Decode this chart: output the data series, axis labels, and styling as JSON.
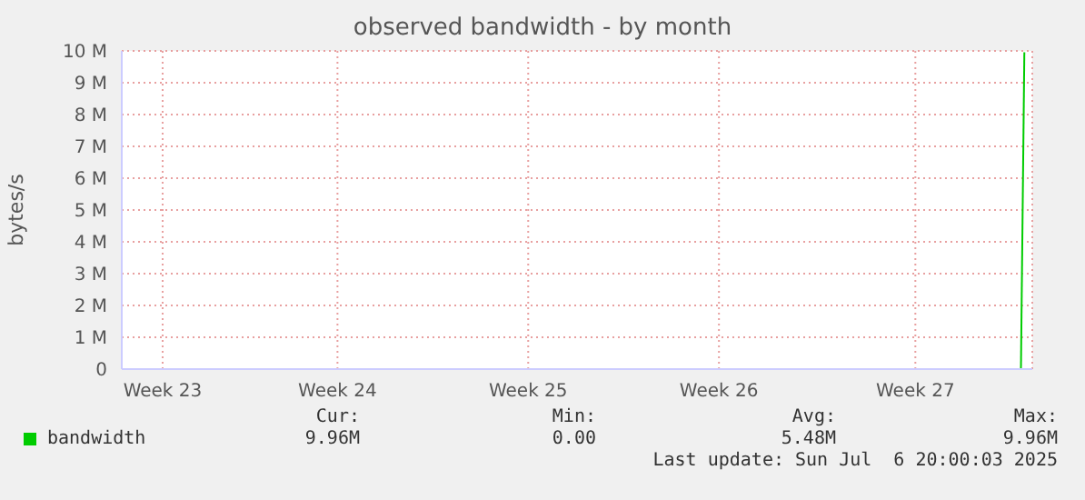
{
  "chart_data": {
    "type": "line",
    "title": "observed bandwidth - by month",
    "ylabel": "bytes/s",
    "series": [
      {
        "name": "bandwidth",
        "color": "#00cc00",
        "x": [
          "2025-07-06T14:00",
          "2025-07-06T17:00"
        ],
        "values": [
          0,
          9960000
        ]
      }
    ],
    "xlim": [
      "2025-06-03T14:00",
      "2025-07-07T00:00"
    ],
    "xticks": [
      {
        "value": "2025-06-05T02:00",
        "label": "Week 23"
      },
      {
        "value": "2025-06-11T12:00",
        "label": "Week 24"
      },
      {
        "value": "2025-06-18T12:00",
        "label": "Week 25"
      },
      {
        "value": "2025-06-25T12:00",
        "label": "Week 26"
      },
      {
        "value": "2025-07-02T17:00",
        "label": "Week 27"
      }
    ],
    "ylim": [
      0,
      10000000
    ],
    "yticks": [
      0,
      {
        "value": 1000000,
        "label": "1 M"
      },
      {
        "value": 2000000,
        "label": "2 M"
      },
      {
        "value": 3000000,
        "label": "3 M"
      },
      {
        "value": 4000000,
        "label": "4 M"
      },
      {
        "value": 5000000,
        "label": "5 M"
      },
      {
        "value": 6000000,
        "label": "6 M"
      },
      {
        "value": 7000000,
        "label": "7 M"
      },
      {
        "value": 8000000,
        "label": "8 M"
      },
      {
        "value": 9000000,
        "label": "9 M"
      },
      {
        "value": 10000000,
        "label": "10 M"
      }
    ],
    "grid": true,
    "legend": "bottom left",
    "marker": "none",
    "line_style": "solid",
    "annotations": [
      "Cur:",
      "Min:",
      "Avg:",
      "Max:",
      "9.96M",
      "0.00",
      "5.48M",
      "9.96M",
      "Last update: Sun Jul  6 20:00:03 2025"
    ]
  }
}
